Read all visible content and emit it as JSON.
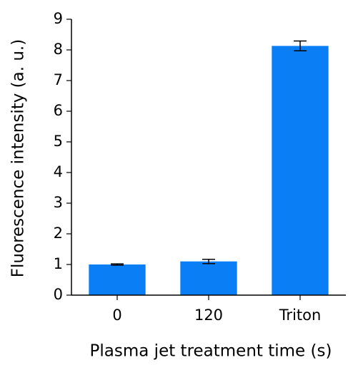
{
  "chart_data": {
    "type": "bar",
    "x_label": "Plasma jet treatment time (s)",
    "y_label": "Fluorescence intensity (a. u.)",
    "categories": [
      "0",
      "120",
      "Triton"
    ],
    "values": [
      1.0,
      1.1,
      8.13
    ],
    "errors": [
      0.02,
      0.07,
      0.16
    ],
    "color": "#0a7ef5",
    "ylim": [
      0,
      9
    ],
    "yticks": [
      0,
      1,
      2,
      3,
      4,
      5,
      6,
      7,
      8,
      9
    ],
    "grid": false
  }
}
